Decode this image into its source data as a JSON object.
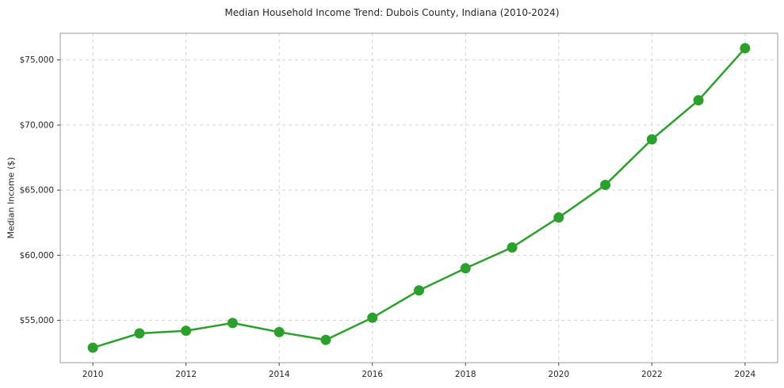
{
  "chart_data": {
    "type": "line",
    "title": "Median Household Income Trend: Dubois County, Indiana (2010-2024)",
    "xlabel": "",
    "ylabel": "Median Income ($)",
    "series_name": "Median Household Income",
    "x": [
      2010,
      2011,
      2012,
      2013,
      2014,
      2015,
      2016,
      2017,
      2018,
      2019,
      2020,
      2021,
      2022,
      2023,
      2024
    ],
    "values": [
      52900,
      54000,
      54200,
      54800,
      54100,
      53500,
      55200,
      57300,
      59000,
      60600,
      62900,
      65400,
      68900,
      71900,
      75900
    ],
    "xlim": [
      2009.3,
      2024.7
    ],
    "ylim": [
      51750,
      77050
    ],
    "x_ticks": [
      2010,
      2012,
      2014,
      2016,
      2018,
      2020,
      2022,
      2024
    ],
    "y_ticks": [
      55000,
      60000,
      65000,
      70000,
      75000
    ],
    "y_tick_labels": [
      "$55,000",
      "$60,000",
      "$65,000",
      "$70,000",
      "$75,000"
    ],
    "grid": true,
    "legend": "none",
    "line_color": "#2ca02c",
    "marker": "circle",
    "grid_color": "#d4d4d4",
    "spine_color": "#9b9b9b",
    "text_color": "#262626",
    "background": "#ffffff"
  }
}
